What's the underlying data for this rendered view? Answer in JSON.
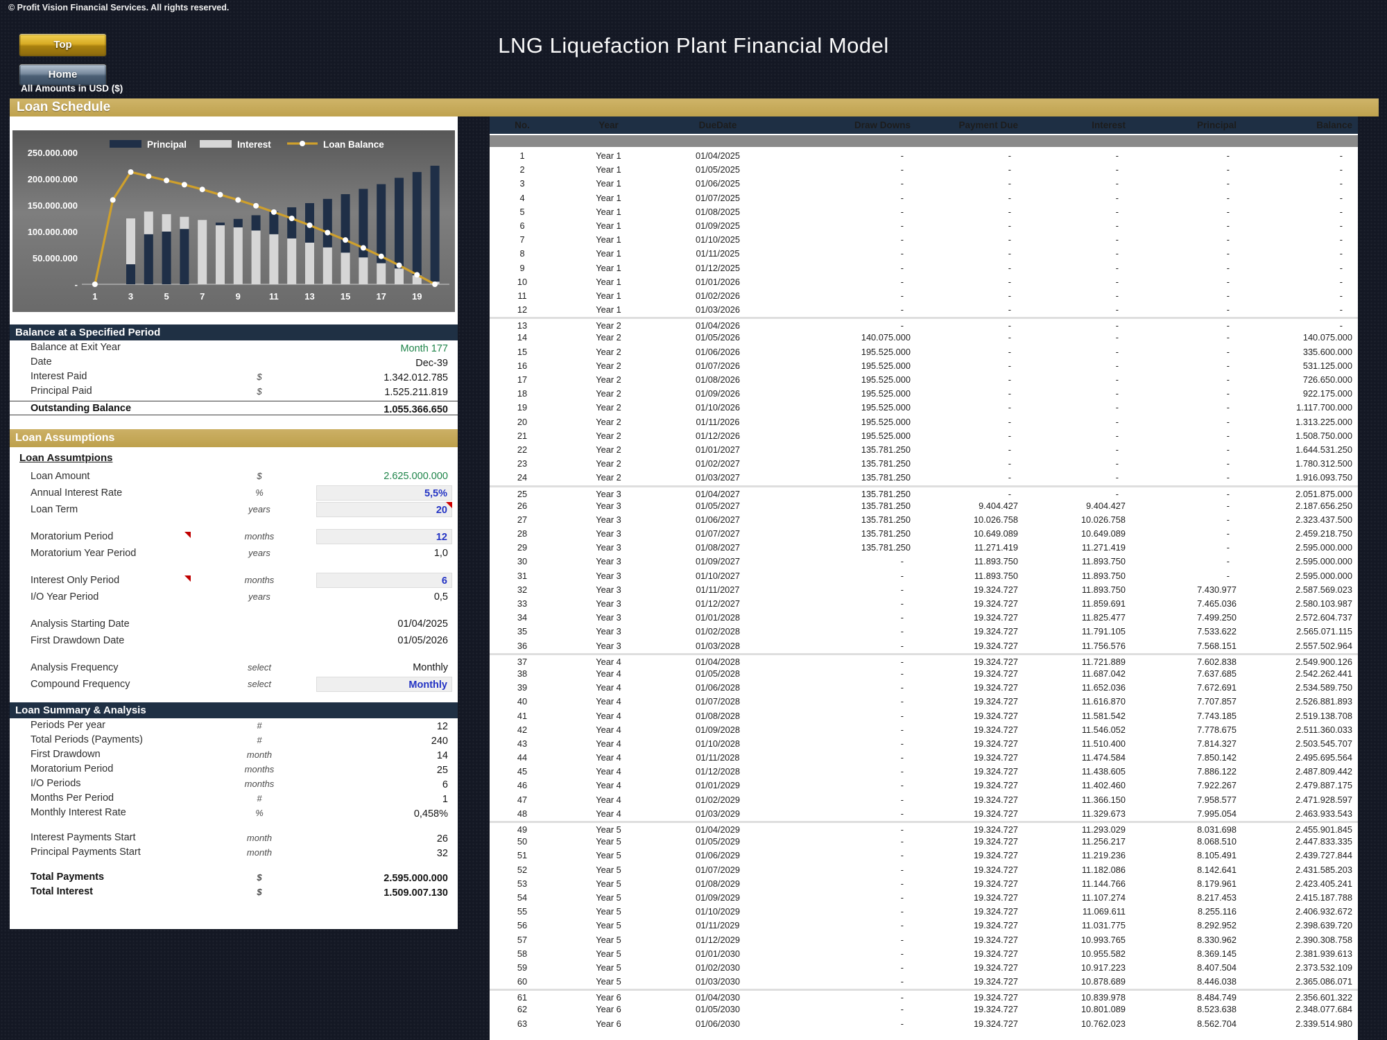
{
  "header": {
    "copyright": "© Profit Vision Financial Services. All rights reserved.",
    "title": "LNG Liquefaction Plant Financial Model",
    "top_button": "Top",
    "home_button": "Home",
    "amounts_note": "All Amounts in  USD ($)"
  },
  "section_title": "Loan Schedule",
  "chart_data": {
    "type": "bar",
    "subtype": "stacked-bars-with-line",
    "title": "",
    "x": [
      1,
      2,
      3,
      4,
      5,
      6,
      7,
      8,
      9,
      10,
      11,
      12,
      13,
      14,
      15,
      16,
      17,
      18,
      19,
      20
    ],
    "x_tick_labels": [
      "1",
      "3",
      "5",
      "7",
      "9",
      "11",
      "13",
      "15",
      "17",
      "19"
    ],
    "y_axis": {
      "labels": [
        "250.000.000",
        "200.000.000",
        "150.000.000",
        "100.000.000",
        "50.000.000",
        "-"
      ],
      "values": [
        250000000,
        200000000,
        150000000,
        100000000,
        50000000,
        0
      ]
    },
    "ylim": [
      0,
      250000000
    ],
    "legend_position": "top",
    "grid": false,
    "principal_on_top_from_index": 6,
    "series": [
      {
        "name": "Principal",
        "type": "bar",
        "color": "#1f2f47",
        "values": [
          0,
          0,
          38000000,
          95000000,
          100000000,
          105000000,
          0,
          5000000,
          16000000,
          29000000,
          43000000,
          59000000,
          75000000,
          92000000,
          111000000,
          130000000,
          150000000,
          172000000,
          196000000,
          220000000
        ]
      },
      {
        "name": "Interest",
        "type": "bar",
        "color": "#d6d6d6",
        "values": [
          0,
          0,
          87000000,
          43000000,
          33000000,
          23000000,
          122000000,
          112000000,
          108000000,
          102000000,
          95000000,
          87000000,
          79000000,
          70000000,
          60000000,
          51000000,
          40000000,
          30000000,
          17000000,
          5000000
        ]
      },
      {
        "name": "Loan Balance",
        "type": "line",
        "color": "#cfa02c",
        "values": [
          0,
          160000000,
          213000000,
          205000000,
          197000000,
          189000000,
          180000000,
          170000000,
          160000000,
          149000000,
          137000000,
          125000000,
          112000000,
          98000000,
          84000000,
          69000000,
          53000000,
          36000000,
          18000000,
          0
        ]
      }
    ]
  },
  "balance_panel": {
    "title": "Balance at a Specified Period",
    "rows": [
      {
        "label": "Balance at Exit Year",
        "unit": "",
        "value": "Month 177",
        "style": "green",
        "editable": true
      },
      {
        "label": "Date",
        "unit": "",
        "value": "Dec-39",
        "style": "plain",
        "editable": false
      },
      {
        "label": "Interest Paid",
        "unit": "$",
        "value": "1.342.012.785",
        "style": "plain",
        "editable": false
      },
      {
        "label": "Principal Paid",
        "unit": "$",
        "value": "1.525.211.819",
        "style": "plain",
        "editable": false
      },
      {
        "label": "Outstanding Balance",
        "unit": "",
        "value": "1.055.366.650",
        "style": "total",
        "editable": false
      }
    ]
  },
  "assumptions_panel": {
    "title": "Loan Assumptions",
    "subtitle": "Loan Assumtpions",
    "rows": [
      {
        "label": "Loan Amount",
        "unit": "$",
        "value": "2.625.000.000",
        "style": "green",
        "editable": true
      },
      {
        "label": "Annual Interest Rate",
        "unit": "%",
        "value": "5,5%",
        "style": "input",
        "editable": true
      },
      {
        "label": "Loan Term",
        "unit": "years",
        "value": "20",
        "style": "input",
        "editable": true,
        "corner_note": true
      },
      {
        "label": "Moratorium Period",
        "unit": "months",
        "value": "12",
        "style": "input",
        "editable": true,
        "label_note": true,
        "gap": true
      },
      {
        "label": "Moratorium Year Period",
        "unit": "years",
        "value": "1,0",
        "style": "plain",
        "editable": false
      },
      {
        "label": "Interest Only Period",
        "unit": "months",
        "value": "6",
        "style": "input",
        "editable": true,
        "label_note": true,
        "gap": true
      },
      {
        "label": "I/O Year Period",
        "unit": "years",
        "value": "0,5",
        "style": "plain",
        "editable": false
      },
      {
        "label": "Analysis Starting Date",
        "unit": "",
        "value": "01/04/2025",
        "style": "plain",
        "editable": false,
        "gap": true
      },
      {
        "label": "First Drawdown Date",
        "unit": "",
        "value": "01/05/2026",
        "style": "plain",
        "editable": false
      },
      {
        "label": "Analysis Frequency",
        "unit": "select",
        "value": "Monthly",
        "style": "plain",
        "editable": true,
        "gap": true
      },
      {
        "label": "Compound Frequency",
        "unit": "select",
        "value": "Monthly",
        "style": "input",
        "editable": true
      }
    ]
  },
  "summary_panel": {
    "title": "Loan Summary & Analysis",
    "rows": [
      {
        "label": "Periods Per year",
        "unit": "#",
        "value": "12",
        "style": "plain"
      },
      {
        "label": "Total Periods (Payments)",
        "unit": "#",
        "value": "240",
        "style": "plain"
      },
      {
        "label": "First Drawdown",
        "unit": "month",
        "value": "14",
        "style": "plain"
      },
      {
        "label": "Moratorium Period",
        "unit": "months",
        "value": "25",
        "style": "plain"
      },
      {
        "label": "I/O Periods",
        "unit": "months",
        "value": "6",
        "style": "plain"
      },
      {
        "label": "Months Per Period",
        "unit": "#",
        "value": "1",
        "style": "plain"
      },
      {
        "label": "Monthly Interest Rate",
        "unit": "%",
        "value": "0,458%",
        "style": "plain"
      },
      {
        "label": "Interest Payments Start",
        "unit": "month",
        "value": "26",
        "style": "plain",
        "gap": true
      },
      {
        "label": "Principal Payments Start",
        "unit": "month",
        "value": "32",
        "style": "plain"
      },
      {
        "label": "Total Payments",
        "unit": "$",
        "value": "2.595.000.000",
        "style": "total",
        "gap": true
      },
      {
        "label": "Total Interest",
        "unit": "$",
        "value": "1.509.007.130",
        "style": "total"
      }
    ]
  },
  "table": {
    "headers": [
      "No.",
      "Year",
      "DueDate",
      "Draw Downs",
      "Payment Due",
      "Interest",
      "Principal",
      "Balance"
    ],
    "group_start_rows": [
      13,
      25,
      37,
      49,
      61
    ],
    "rows": [
      [
        "1",
        "Year 1",
        "01/04/2025",
        "-",
        "-",
        "-",
        "-",
        "-"
      ],
      [
        "2",
        "Year 1",
        "01/05/2025",
        "-",
        "-",
        "-",
        "-",
        "-"
      ],
      [
        "3",
        "Year 1",
        "01/06/2025",
        "-",
        "-",
        "-",
        "-",
        "-"
      ],
      [
        "4",
        "Year 1",
        "01/07/2025",
        "-",
        "-",
        "-",
        "-",
        "-"
      ],
      [
        "5",
        "Year 1",
        "01/08/2025",
        "-",
        "-",
        "-",
        "-",
        "-"
      ],
      [
        "6",
        "Year 1",
        "01/09/2025",
        "-",
        "-",
        "-",
        "-",
        "-"
      ],
      [
        "7",
        "Year 1",
        "01/10/2025",
        "-",
        "-",
        "-",
        "-",
        "-"
      ],
      [
        "8",
        "Year 1",
        "01/11/2025",
        "-",
        "-",
        "-",
        "-",
        "-"
      ],
      [
        "9",
        "Year 1",
        "01/12/2025",
        "-",
        "-",
        "-",
        "-",
        "-"
      ],
      [
        "10",
        "Year 1",
        "01/01/2026",
        "-",
        "-",
        "-",
        "-",
        "-"
      ],
      [
        "11",
        "Year 1",
        "01/02/2026",
        "-",
        "-",
        "-",
        "-",
        "-"
      ],
      [
        "12",
        "Year 1",
        "01/03/2026",
        "-",
        "-",
        "-",
        "-",
        "-"
      ],
      [
        "13",
        "Year 2",
        "01/04/2026",
        "-",
        "-",
        "-",
        "-",
        "-"
      ],
      [
        "14",
        "Year 2",
        "01/05/2026",
        "140.075.000",
        "-",
        "-",
        "-",
        "140.075.000"
      ],
      [
        "15",
        "Year 2",
        "01/06/2026",
        "195.525.000",
        "-",
        "-",
        "-",
        "335.600.000"
      ],
      [
        "16",
        "Year 2",
        "01/07/2026",
        "195.525.000",
        "-",
        "-",
        "-",
        "531.125.000"
      ],
      [
        "17",
        "Year 2",
        "01/08/2026",
        "195.525.000",
        "-",
        "-",
        "-",
        "726.650.000"
      ],
      [
        "18",
        "Year 2",
        "01/09/2026",
        "195.525.000",
        "-",
        "-",
        "-",
        "922.175.000"
      ],
      [
        "19",
        "Year 2",
        "01/10/2026",
        "195.525.000",
        "-",
        "-",
        "-",
        "1.117.700.000"
      ],
      [
        "20",
        "Year 2",
        "01/11/2026",
        "195.525.000",
        "-",
        "-",
        "-",
        "1.313.225.000"
      ],
      [
        "21",
        "Year 2",
        "01/12/2026",
        "195.525.000",
        "-",
        "-",
        "-",
        "1.508.750.000"
      ],
      [
        "22",
        "Year 2",
        "01/01/2027",
        "135.781.250",
        "-",
        "-",
        "-",
        "1.644.531.250"
      ],
      [
        "23",
        "Year 2",
        "01/02/2027",
        "135.781.250",
        "-",
        "-",
        "-",
        "1.780.312.500"
      ],
      [
        "24",
        "Year 2",
        "01/03/2027",
        "135.781.250",
        "-",
        "-",
        "-",
        "1.916.093.750"
      ],
      [
        "25",
        "Year 3",
        "01/04/2027",
        "135.781.250",
        "-",
        "-",
        "-",
        "2.051.875.000"
      ],
      [
        "26",
        "Year 3",
        "01/05/2027",
        "135.781.250",
        "9.404.427",
        "9.404.427",
        "-",
        "2.187.656.250"
      ],
      [
        "27",
        "Year 3",
        "01/06/2027",
        "135.781.250",
        "10.026.758",
        "10.026.758",
        "-",
        "2.323.437.500"
      ],
      [
        "28",
        "Year 3",
        "01/07/2027",
        "135.781.250",
        "10.649.089",
        "10.649.089",
        "-",
        "2.459.218.750"
      ],
      [
        "29",
        "Year 3",
        "01/08/2027",
        "135.781.250",
        "11.271.419",
        "11.271.419",
        "-",
        "2.595.000.000"
      ],
      [
        "30",
        "Year 3",
        "01/09/2027",
        "-",
        "11.893.750",
        "11.893.750",
        "-",
        "2.595.000.000"
      ],
      [
        "31",
        "Year 3",
        "01/10/2027",
        "-",
        "11.893.750",
        "11.893.750",
        "-",
        "2.595.000.000"
      ],
      [
        "32",
        "Year 3",
        "01/11/2027",
        "-",
        "19.324.727",
        "11.893.750",
        "7.430.977",
        "2.587.569.023"
      ],
      [
        "33",
        "Year 3",
        "01/12/2027",
        "-",
        "19.324.727",
        "11.859.691",
        "7.465.036",
        "2.580.103.987"
      ],
      [
        "34",
        "Year 3",
        "01/01/2028",
        "-",
        "19.324.727",
        "11.825.477",
        "7.499.250",
        "2.572.604.737"
      ],
      [
        "35",
        "Year 3",
        "01/02/2028",
        "-",
        "19.324.727",
        "11.791.105",
        "7.533.622",
        "2.565.071.115"
      ],
      [
        "36",
        "Year 3",
        "01/03/2028",
        "-",
        "19.324.727",
        "11.756.576",
        "7.568.151",
        "2.557.502.964"
      ],
      [
        "37",
        "Year 4",
        "01/04/2028",
        "-",
        "19.324.727",
        "11.721.889",
        "7.602.838",
        "2.549.900.126"
      ],
      [
        "38",
        "Year 4",
        "01/05/2028",
        "-",
        "19.324.727",
        "11.687.042",
        "7.637.685",
        "2.542.262.441"
      ],
      [
        "39",
        "Year 4",
        "01/06/2028",
        "-",
        "19.324.727",
        "11.652.036",
        "7.672.691",
        "2.534.589.750"
      ],
      [
        "40",
        "Year 4",
        "01/07/2028",
        "-",
        "19.324.727",
        "11.616.870",
        "7.707.857",
        "2.526.881.893"
      ],
      [
        "41",
        "Year 4",
        "01/08/2028",
        "-",
        "19.324.727",
        "11.581.542",
        "7.743.185",
        "2.519.138.708"
      ],
      [
        "42",
        "Year 4",
        "01/09/2028",
        "-",
        "19.324.727",
        "11.546.052",
        "7.778.675",
        "2.511.360.033"
      ],
      [
        "43",
        "Year 4",
        "01/10/2028",
        "-",
        "19.324.727",
        "11.510.400",
        "7.814.327",
        "2.503.545.707"
      ],
      [
        "44",
        "Year 4",
        "01/11/2028",
        "-",
        "19.324.727",
        "11.474.584",
        "7.850.142",
        "2.495.695.564"
      ],
      [
        "45",
        "Year 4",
        "01/12/2028",
        "-",
        "19.324.727",
        "11.438.605",
        "7.886.122",
        "2.487.809.442"
      ],
      [
        "46",
        "Year 4",
        "01/01/2029",
        "-",
        "19.324.727",
        "11.402.460",
        "7.922.267",
        "2.479.887.175"
      ],
      [
        "47",
        "Year 4",
        "01/02/2029",
        "-",
        "19.324.727",
        "11.366.150",
        "7.958.577",
        "2.471.928.597"
      ],
      [
        "48",
        "Year 4",
        "01/03/2029",
        "-",
        "19.324.727",
        "11.329.673",
        "7.995.054",
        "2.463.933.543"
      ],
      [
        "49",
        "Year 5",
        "01/04/2029",
        "-",
        "19.324.727",
        "11.293.029",
        "8.031.698",
        "2.455.901.845"
      ],
      [
        "50",
        "Year 5",
        "01/05/2029",
        "-",
        "19.324.727",
        "11.256.217",
        "8.068.510",
        "2.447.833.335"
      ],
      [
        "51",
        "Year 5",
        "01/06/2029",
        "-",
        "19.324.727",
        "11.219.236",
        "8.105.491",
        "2.439.727.844"
      ],
      [
        "52",
        "Year 5",
        "01/07/2029",
        "-",
        "19.324.727",
        "11.182.086",
        "8.142.641",
        "2.431.585.203"
      ],
      [
        "53",
        "Year 5",
        "01/08/2029",
        "-",
        "19.324.727",
        "11.144.766",
        "8.179.961",
        "2.423.405.241"
      ],
      [
        "54",
        "Year 5",
        "01/09/2029",
        "-",
        "19.324.727",
        "11.107.274",
        "8.217.453",
        "2.415.187.788"
      ],
      [
        "55",
        "Year 5",
        "01/10/2029",
        "-",
        "19.324.727",
        "11.069.611",
        "8.255.116",
        "2.406.932.672"
      ],
      [
        "56",
        "Year 5",
        "01/11/2029",
        "-",
        "19.324.727",
        "11.031.775",
        "8.292.952",
        "2.398.639.720"
      ],
      [
        "57",
        "Year 5",
        "01/12/2029",
        "-",
        "19.324.727",
        "10.993.765",
        "8.330.962",
        "2.390.308.758"
      ],
      [
        "58",
        "Year 5",
        "01/01/2030",
        "-",
        "19.324.727",
        "10.955.582",
        "8.369.145",
        "2.381.939.613"
      ],
      [
        "59",
        "Year 5",
        "01/02/2030",
        "-",
        "19.324.727",
        "10.917.223",
        "8.407.504",
        "2.373.532.109"
      ],
      [
        "60",
        "Year 5",
        "01/03/2030",
        "-",
        "19.324.727",
        "10.878.689",
        "8.446.038",
        "2.365.086.071"
      ],
      [
        "61",
        "Year 6",
        "01/04/2030",
        "-",
        "19.324.727",
        "10.839.978",
        "8.484.749",
        "2.356.601.322"
      ],
      [
        "62",
        "Year 6",
        "01/05/2030",
        "-",
        "19.324.727",
        "10.801.089",
        "8.523.638",
        "2.348.077.684"
      ],
      [
        "63",
        "Year 6",
        "01/06/2030",
        "-",
        "19.324.727",
        "10.762.023",
        "8.562.704",
        "2.339.514.980"
      ]
    ]
  },
  "colors": {
    "gold": "#c2a654",
    "navy_header": "#1f3044",
    "table_header": "#1e2f44",
    "separator_gray": "#8a8a8a",
    "input_blue": "#2333c4",
    "input_green": "#1e8449",
    "note_red": "#c00000",
    "chart_principal": "#1f2f47",
    "chart_interest": "#d6d6d6",
    "chart_line": "#cfa02c"
  }
}
